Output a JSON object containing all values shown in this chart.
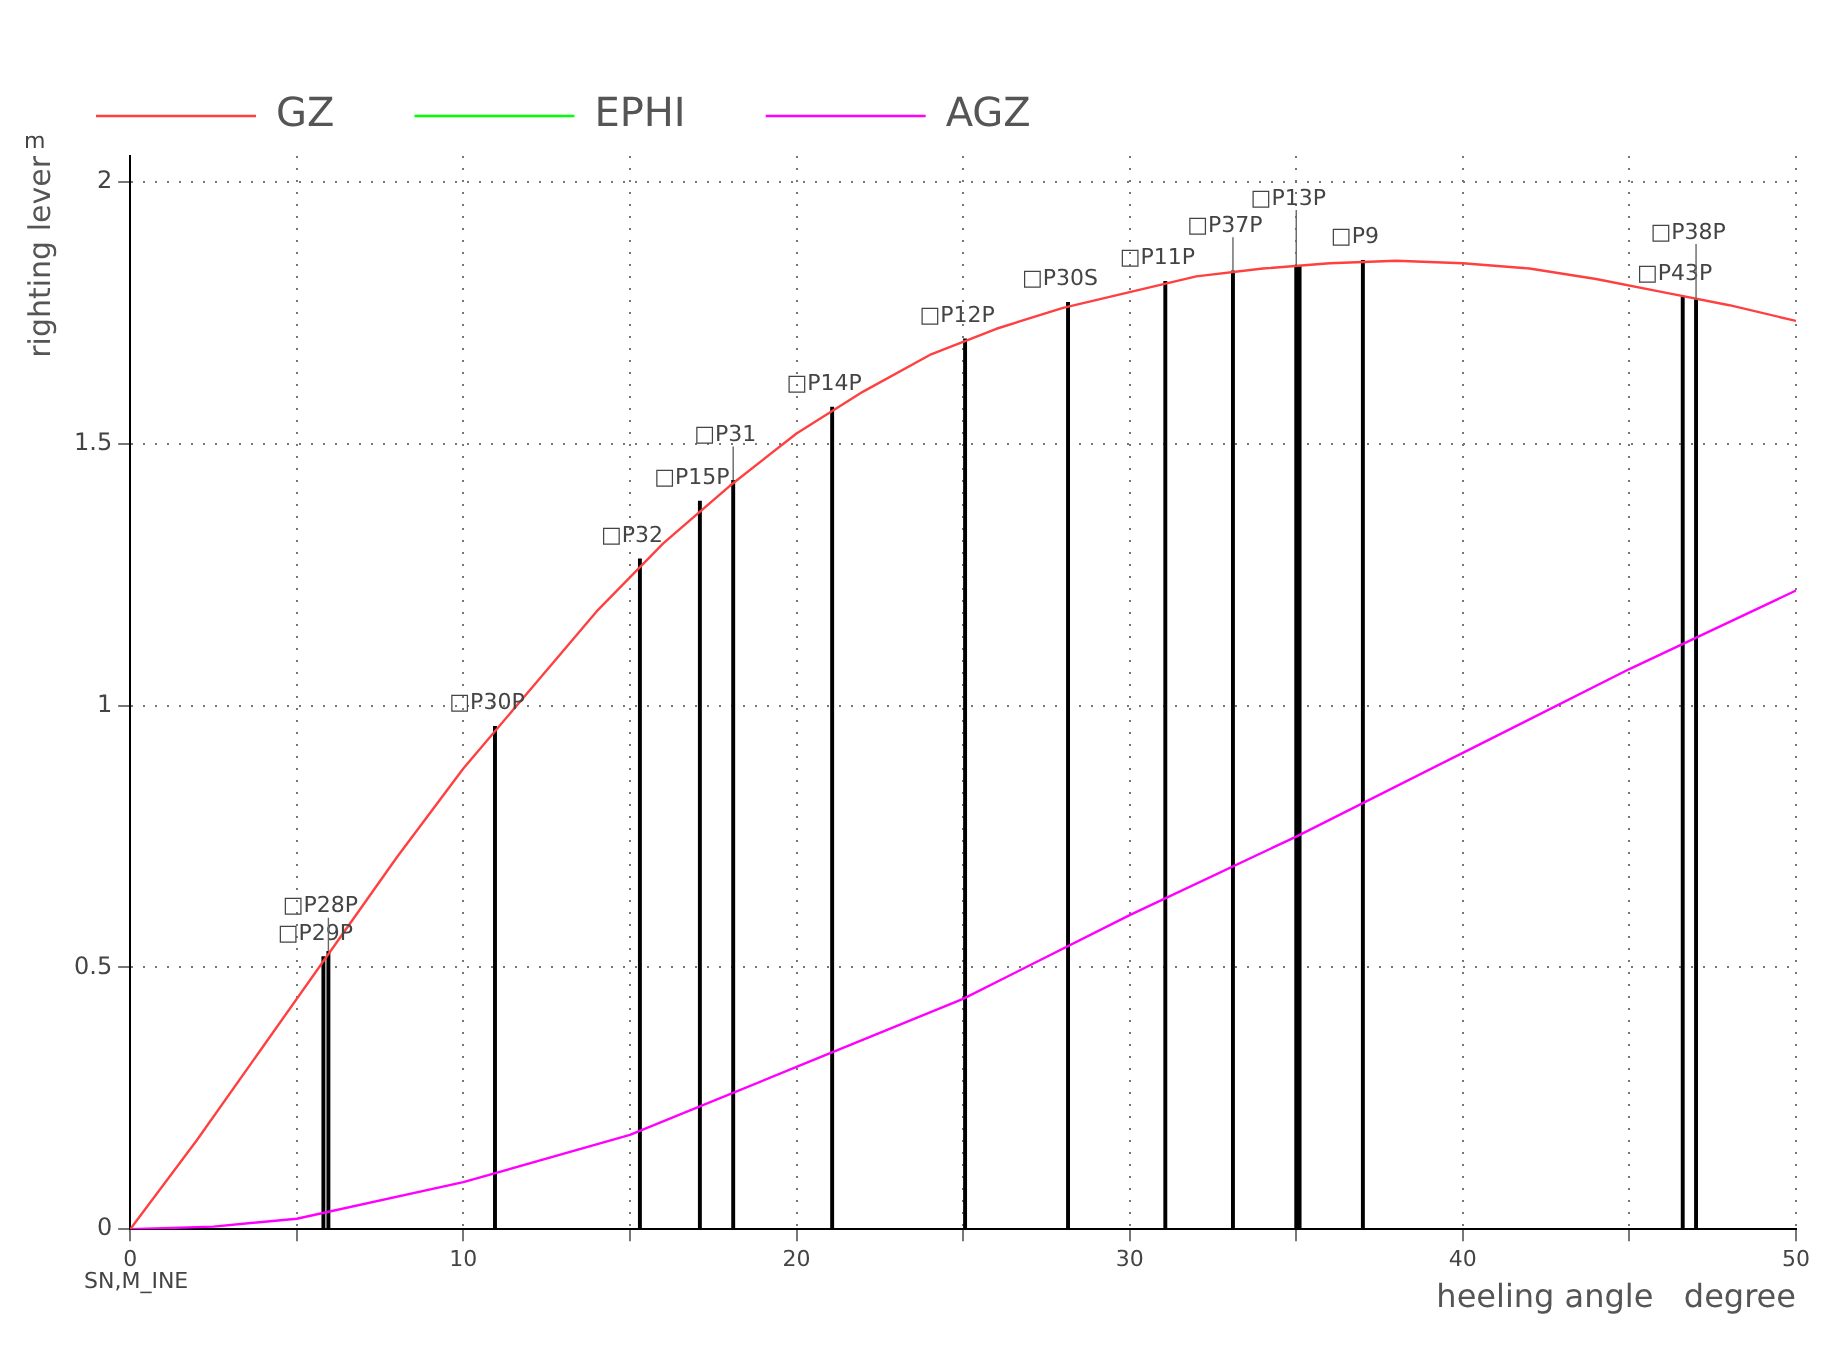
{
  "chart_data": {
    "type": "line",
    "xlabel": "heeling angle   degree",
    "ylabel": "righting lever",
    "annotations": [
      "m",
      "SN,M_INE",
      {
        "text": "□P29P",
        "x": 5.8,
        "y": 0.52
      },
      {
        "text": "□P28P",
        "x": 5.95,
        "y": 0.53
      },
      {
        "text": "□P30P",
        "x": 10.95,
        "y": 0.96
      },
      {
        "text": "□P32",
        "x": 15.3,
        "y": 1.28
      },
      {
        "text": "□P15P",
        "x": 17.1,
        "y": 1.39
      },
      {
        "text": "□P31",
        "x": 18.1,
        "y": 1.43
      },
      {
        "text": "□P14P",
        "x": 21.07,
        "y": 1.57
      },
      {
        "text": "□P12P",
        "x": 25.06,
        "y": 1.7
      },
      {
        "text": "□P30S",
        "x": 28.15,
        "y": 1.77
      },
      {
        "text": "□P11P",
        "x": 31.07,
        "y": 1.81
      },
      {
        "text": "□P37P",
        "x": 33.1,
        "y": 1.83
      },
      {
        "text": "□P13P",
        "x": 35.0,
        "y": 1.84
      },
      {
        "text": "□P9",
        "x": 37.0,
        "y": 1.85
      },
      {
        "text": "□P43P",
        "x": 46.6,
        "y": 1.78
      },
      {
        "text": "□P38P",
        "x": 47.0,
        "y": 1.775
      }
    ],
    "series": [
      {
        "name": "GZ",
        "color": "#ff4040",
        "x": [
          0,
          2,
          4,
          6,
          8,
          10,
          12,
          14,
          16,
          18,
          20,
          22,
          24,
          26,
          28,
          30,
          32,
          34,
          36,
          38,
          40,
          42,
          44,
          46,
          48,
          50
        ],
        "values": [
          0,
          0.17,
          0.35,
          0.53,
          0.71,
          0.88,
          1.03,
          1.18,
          1.31,
          1.42,
          1.52,
          1.6,
          1.67,
          1.72,
          1.76,
          1.79,
          1.82,
          1.835,
          1.845,
          1.85,
          1.845,
          1.835,
          1.815,
          1.79,
          1.765,
          1.735
        ]
      },
      {
        "name": "EPHI",
        "color": "#00ff00"
      },
      {
        "name": "AGZ",
        "color": "#ff00ff",
        "x": [
          0,
          2.5,
          5,
          10,
          15,
          20,
          25,
          30,
          35,
          40,
          45,
          50
        ],
        "values": [
          0,
          0.005,
          0.02,
          0.09,
          0.18,
          0.31,
          0.44,
          0.6,
          0.75,
          0.91,
          1.07,
          1.22
        ]
      },
      {
        "type": "bar",
        "color": "#000000",
        "x": [
          5.8,
          5.95,
          10.95,
          15.3,
          17.1,
          18.1,
          21.07,
          25.06,
          28.15,
          31.07,
          33.1,
          35.0,
          35.1,
          37.0,
          46.6,
          47.0
        ],
        "values": [
          0.52,
          0.53,
          0.96,
          1.28,
          1.39,
          1.43,
          1.57,
          1.7,
          1.77,
          1.81,
          1.83,
          1.84,
          1.84,
          1.85,
          1.78,
          1.775
        ]
      }
    ],
    "xlim": [
      0,
      50
    ],
    "xticks": [
      0,
      {
        "value": 5,
        "label": null
      },
      10,
      {
        "value": 15,
        "label": null
      },
      20,
      {
        "value": 25,
        "label": null
      },
      30,
      {
        "value": 35,
        "label": null
      },
      40,
      {
        "value": 45,
        "label": null
      },
      50
    ],
    "ylim": [
      0,
      2.05
    ],
    "yticks": [
      0,
      0.5,
      1,
      1.5,
      2
    ],
    "grid": true,
    "legend": "top left",
    "marker": "none",
    "line_style": "solid"
  }
}
